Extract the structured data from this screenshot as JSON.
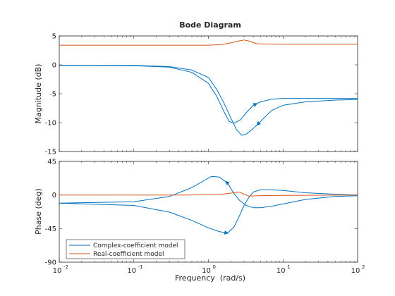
{
  "chart_data": {
    "type": "line",
    "title": "Bode Diagram",
    "xlabel": "Frequency  (rad/s)",
    "x_scale": "log",
    "xlim": [
      0.01,
      100
    ],
    "xticks": [
      0.01,
      0.1,
      1,
      10,
      100
    ],
    "xtick_labels": [
      {
        "base": "10",
        "exp": "-2"
      },
      {
        "base": "10",
        "exp": "-1"
      },
      {
        "base": "10",
        "exp": "0"
      },
      {
        "base": "10",
        "exp": "1"
      },
      {
        "base": "10",
        "exp": "2"
      }
    ],
    "grid": false,
    "legend_position": "bottom-left",
    "legend": [
      "Complex-coefficient model",
      "Real-coefficient model"
    ],
    "colors": {
      "complex": "#0072BD",
      "real": "#D95319",
      "axis": "#262626"
    },
    "panels": [
      {
        "ylabel": "Magnitude (dB)",
        "ylim": [
          -15,
          5
        ],
        "yticks": [
          5,
          0,
          -5,
          -10,
          -15
        ],
        "ytick_labels": [
          "5",
          "0",
          "-5",
          "-10",
          "-15"
        ],
        "series": [
          {
            "name": "Complex-coefficient model",
            "color": "#0072BD",
            "branch": "positive frequency",
            "x": [
              0.01,
              0.1,
              0.3,
              0.6,
              1.0,
              1.3,
              1.6,
              1.9,
              2.2,
              2.7,
              3.2,
              4,
              5,
              7,
              10,
              20,
              50,
              100
            ],
            "y": [
              -0.1,
              -0.15,
              -0.4,
              -1.3,
              -3.2,
              -5.5,
              -8.0,
              -9.8,
              -10.1,
              -9.5,
              -8.3,
              -7.0,
              -6.4,
              -5.95,
              -5.8,
              -5.8,
              -5.8,
              -5.8
            ]
          },
          {
            "name": "Complex-coefficient model",
            "color": "#0072BD",
            "branch": "negative frequency",
            "x": [
              0.01,
              0.1,
              0.3,
              0.6,
              1.0,
              1.3,
              1.6,
              2.0,
              2.4,
              2.8,
              3.2,
              4,
              5,
              7,
              10,
              20,
              50,
              100
            ],
            "y": [
              -0.1,
              -0.1,
              -0.3,
              -0.9,
              -2.2,
              -4.3,
              -6.5,
              -9.2,
              -11.3,
              -12.2,
              -12.0,
              -11.0,
              -9.8,
              -7.9,
              -7.0,
              -6.4,
              -6.1,
              -6.0
            ]
          },
          {
            "name": "Real-coefficient model",
            "color": "#D95319",
            "x": [
              0.01,
              0.1,
              1,
              1.5,
              2.0,
              2.5,
              3.0,
              3.5,
              4.5,
              10,
              100
            ],
            "y": [
              3.4,
              3.4,
              3.4,
              3.5,
              3.8,
              4.1,
              4.3,
              4.1,
              3.65,
              3.55,
              3.55
            ]
          }
        ]
      },
      {
        "ylabel": "Phase (deg)",
        "ylim": [
          -90,
          45
        ],
        "yticks": [
          45,
          0,
          -45,
          -90
        ],
        "ytick_labels": [
          "45",
          "0",
          "-45",
          "-90"
        ],
        "series": [
          {
            "name": "Complex-coefficient model",
            "color": "#0072BD",
            "branch": "positive frequency",
            "x": [
              0.01,
              0.1,
              0.3,
              0.6,
              0.9,
              1.1,
              1.4,
              1.8,
              2.2,
              2.6,
              3.2,
              4,
              5,
              7,
              10,
              20,
              50,
              100
            ],
            "y": [
              -11,
              -9,
              -2,
              10,
              20,
              25,
              24,
              16,
              2,
              -7,
              -14,
              -17,
              -17,
              -15,
              -12,
              -6,
              -2,
              -1
            ]
          },
          {
            "name": "Complex-coefficient model",
            "color": "#0072BD",
            "branch": "negative frequency",
            "x": [
              0.01,
              0.1,
              0.3,
              0.6,
              1.0,
              1.4,
              1.8,
              2.2,
              2.6,
              3.0,
              3.5,
              4,
              5,
              7,
              10,
              20,
              50,
              100
            ],
            "y": [
              -11,
              -14,
              -23,
              -34,
              -44,
              -49,
              -51,
              -43,
              -28,
              -14,
              -3,
              4,
              7,
              7,
              6,
              3,
              1,
              0
            ]
          },
          {
            "name": "Real-coefficient model",
            "color": "#D95319",
            "x": [
              0.01,
              0.1,
              0.5,
              1,
              1.5,
              2.0,
              2.6,
              3.0,
              3.5,
              4.5,
              10,
              100
            ],
            "y": [
              0,
              0,
              0,
              0.5,
              1,
              2.5,
              4,
              1,
              -1.5,
              -1,
              -0.5,
              0
            ]
          }
        ]
      }
    ]
  }
}
